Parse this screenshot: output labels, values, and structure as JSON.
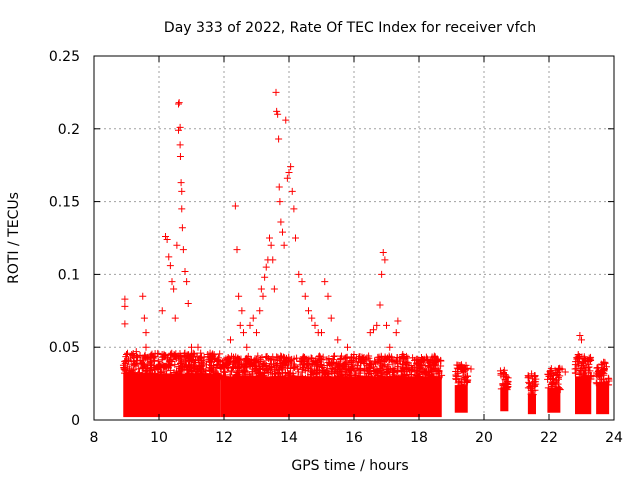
{
  "chart_data": {
    "type": "scatter",
    "title": "Day 333 of 2022, Rate Of TEC Index for receiver vfch",
    "xlabel": "GPS time / hours",
    "ylabel": "ROTI / TECUs",
    "xlim": [
      8,
      24
    ],
    "ylim": [
      0,
      0.25
    ],
    "xticks": [
      8,
      10,
      12,
      14,
      16,
      18,
      20,
      22,
      24
    ],
    "yticks": [
      0,
      0.05,
      0.1,
      0.15,
      0.2,
      0.25
    ],
    "ytick_labels": [
      "0",
      "0.05",
      "0.1",
      "0.15",
      "0.2",
      "0.25"
    ],
    "grid": true,
    "marker": "+",
    "color": "#ff0000",
    "series": [
      {
        "name": "ROTI",
        "x": [
          8.95,
          8.95,
          8.95,
          9.0,
          9.0,
          9.05,
          9.3,
          9.5,
          9.55,
          9.6,
          9.6,
          9.65,
          10.1,
          10.2,
          10.25,
          10.3,
          10.35,
          10.4,
          10.45,
          10.5,
          10.55,
          10.6,
          10.6,
          10.62,
          10.65,
          10.65,
          10.66,
          10.68,
          10.7,
          10.7,
          10.72,
          10.75,
          10.8,
          10.85,
          10.9,
          11.0,
          11.2,
          11.5,
          11.6,
          12.2,
          12.35,
          12.4,
          12.45,
          12.5,
          12.55,
          12.6,
          12.7,
          12.8,
          12.9,
          13.0,
          13.1,
          13.15,
          13.2,
          13.25,
          13.3,
          13.35,
          13.4,
          13.45,
          13.5,
          13.55,
          13.6,
          13.62,
          13.65,
          13.68,
          13.7,
          13.72,
          13.75,
          13.8,
          13.85,
          13.9,
          13.95,
          14.0,
          14.05,
          14.1,
          14.15,
          14.2,
          14.3,
          14.4,
          14.5,
          14.6,
          14.7,
          14.8,
          14.9,
          15.0,
          15.1,
          15.2,
          15.3,
          15.5,
          15.8,
          16.0,
          16.2,
          16.5,
          16.6,
          16.7,
          16.8,
          16.85,
          16.9,
          16.95,
          17.0,
          17.1,
          17.3,
          17.35,
          17.5,
          17.8,
          18.0,
          18.3,
          18.5,
          19.2,
          19.3,
          19.6,
          20.6,
          20.65,
          21.4,
          21.5,
          22.0,
          22.1,
          22.4,
          22.5,
          22.9,
          22.95,
          23.0,
          23.05,
          23.1,
          23.5,
          23.6,
          23.7
        ],
        "y": [
          0.083,
          0.078,
          0.066,
          0.045,
          0.032,
          0.04,
          0.047,
          0.085,
          0.07,
          0.06,
          0.05,
          0.043,
          0.075,
          0.126,
          0.124,
          0.112,
          0.106,
          0.095,
          0.09,
          0.07,
          0.12,
          0.217,
          0.199,
          0.218,
          0.201,
          0.189,
          0.181,
          0.163,
          0.157,
          0.145,
          0.132,
          0.117,
          0.102,
          0.095,
          0.08,
          0.05,
          0.05,
          0.045,
          0.04,
          0.055,
          0.147,
          0.117,
          0.085,
          0.065,
          0.075,
          0.06,
          0.05,
          0.065,
          0.07,
          0.06,
          0.075,
          0.09,
          0.085,
          0.098,
          0.105,
          0.11,
          0.125,
          0.12,
          0.11,
          0.09,
          0.225,
          0.212,
          0.21,
          0.193,
          0.16,
          0.15,
          0.136,
          0.129,
          0.12,
          0.206,
          0.166,
          0.17,
          0.174,
          0.157,
          0.145,
          0.125,
          0.1,
          0.095,
          0.085,
          0.075,
          0.07,
          0.065,
          0.06,
          0.06,
          0.095,
          0.085,
          0.07,
          0.055,
          0.05,
          0.045,
          0.04,
          0.06,
          0.062,
          0.065,
          0.079,
          0.1,
          0.115,
          0.11,
          0.065,
          0.05,
          0.06,
          0.068,
          0.045,
          0.035,
          0.04,
          0.033,
          0.035,
          0.032,
          0.035,
          0.035,
          0.032,
          0.028,
          0.025,
          0.02,
          0.03,
          0.025,
          0.035,
          0.033,
          0.045,
          0.058,
          0.055,
          0.04,
          0.035,
          0.03,
          0.028,
          0.025
        ]
      }
    ]
  }
}
